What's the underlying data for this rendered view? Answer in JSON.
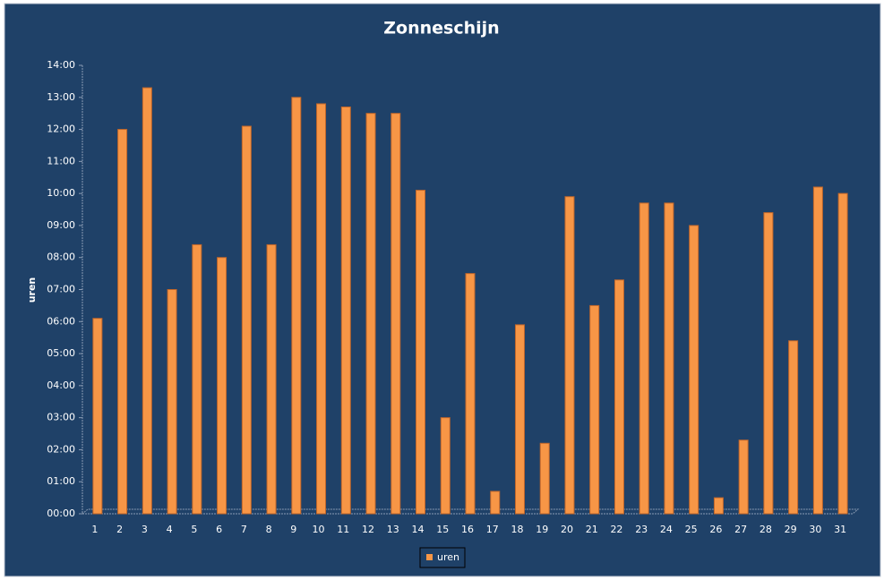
{
  "chart_data": {
    "type": "bar",
    "title": "Zonneschijn",
    "y_label": "uren",
    "categories": [
      "1",
      "2",
      "3",
      "4",
      "5",
      "6",
      "7",
      "8",
      "9",
      "10",
      "11",
      "12",
      "13",
      "14",
      "15",
      "16",
      "17",
      "18",
      "19",
      "20",
      "21",
      "22",
      "23",
      "24",
      "25",
      "26",
      "27",
      "28",
      "29",
      "30",
      "31"
    ],
    "series": [
      {
        "name": "uren",
        "color": "#f79646",
        "values": [
          6.1,
          12.0,
          13.3,
          7.0,
          8.4,
          8.0,
          12.1,
          8.4,
          13.0,
          12.8,
          12.7,
          12.5,
          12.5,
          10.1,
          3.0,
          7.5,
          0.7,
          5.9,
          2.2,
          9.9,
          6.5,
          7.3,
          9.7,
          9.7,
          9.0,
          0.5,
          2.3,
          9.4,
          5.4,
          10.2,
          10.0
        ]
      }
    ],
    "ylim": [
      0,
      14
    ],
    "yticks": [
      {
        "value": 0,
        "label": "00:00"
      },
      {
        "value": 1,
        "label": "01:00"
      },
      {
        "value": 2,
        "label": "02:00"
      },
      {
        "value": 3,
        "label": "03:00"
      },
      {
        "value": 4,
        "label": "04:00"
      },
      {
        "value": 5,
        "label": "05:00"
      },
      {
        "value": 6,
        "label": "06:00"
      },
      {
        "value": 7,
        "label": "07:00"
      },
      {
        "value": 8,
        "label": "08:00"
      },
      {
        "value": 9,
        "label": "09:00"
      },
      {
        "value": 10,
        "label": "10:00"
      },
      {
        "value": 11,
        "label": "11:00"
      },
      {
        "value": 12,
        "label": "12:00"
      },
      {
        "value": 13,
        "label": "13:00"
      },
      {
        "value": 14,
        "label": "14:00"
      }
    ],
    "legend": "bottom"
  }
}
